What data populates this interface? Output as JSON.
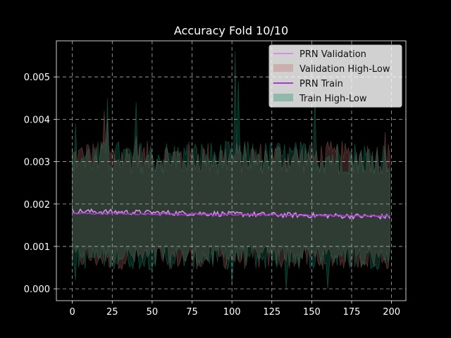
{
  "chart_data": {
    "type": "line",
    "title": "Accuracy Fold 10/10",
    "xlabel": "",
    "ylabel": "",
    "xlim": [
      -10,
      209
    ],
    "ylim": [
      -0.00028,
      0.00585
    ],
    "xticks": [
      0,
      25,
      50,
      75,
      100,
      125,
      150,
      175,
      200
    ],
    "xtick_labels": [
      "0",
      "25",
      "50",
      "75",
      "100",
      "125",
      "150",
      "175",
      "200"
    ],
    "yticks": [
      0.0,
      0.001,
      0.002,
      0.003,
      0.004,
      0.005
    ],
    "ytick_labels": [
      "0.000",
      "0.001",
      "0.002",
      "0.003",
      "0.004",
      "0.005"
    ],
    "grid": true,
    "legend_position": "top-right",
    "x_range": [
      0,
      199
    ],
    "series": [
      {
        "name": "PRN Validation",
        "kind": "line",
        "color": "#d58fe3",
        "approx_start": 0.00183,
        "approx_end": 0.0017,
        "noise": 6e-05
      },
      {
        "name": "Validation High-Low",
        "kind": "band",
        "color": "#c0706a",
        "approx_low": 0.0008,
        "approx_high": 0.003,
        "spikes_high": [
          [
            10,
            0.0034
          ],
          [
            20,
            0.0042
          ],
          [
            22,
            0.004
          ],
          [
            40,
            0.0036
          ],
          [
            196,
            0.0037
          ]
        ]
      },
      {
        "name": "PRN Train",
        "kind": "line",
        "color": "#a23ec9",
        "approx_start": 0.00178,
        "approx_end": 0.00172,
        "noise": 2e-05
      },
      {
        "name": "Train High-Low",
        "kind": "band",
        "color": "#1b8a6a",
        "approx_low": 0.0008,
        "approx_high": 0.003,
        "spikes_high": [
          [
            2,
            0.0039
          ],
          [
            22,
            0.0045
          ],
          [
            40,
            0.0044
          ],
          [
            102,
            0.0056
          ],
          [
            104,
            0.0049
          ],
          [
            152,
            0.0046
          ]
        ],
        "spikes_low": [
          [
            2,
            0.0002
          ],
          [
            100,
            0.0001
          ],
          [
            134,
            0.0
          ],
          [
            160,
            0.0
          ]
        ]
      }
    ]
  }
}
